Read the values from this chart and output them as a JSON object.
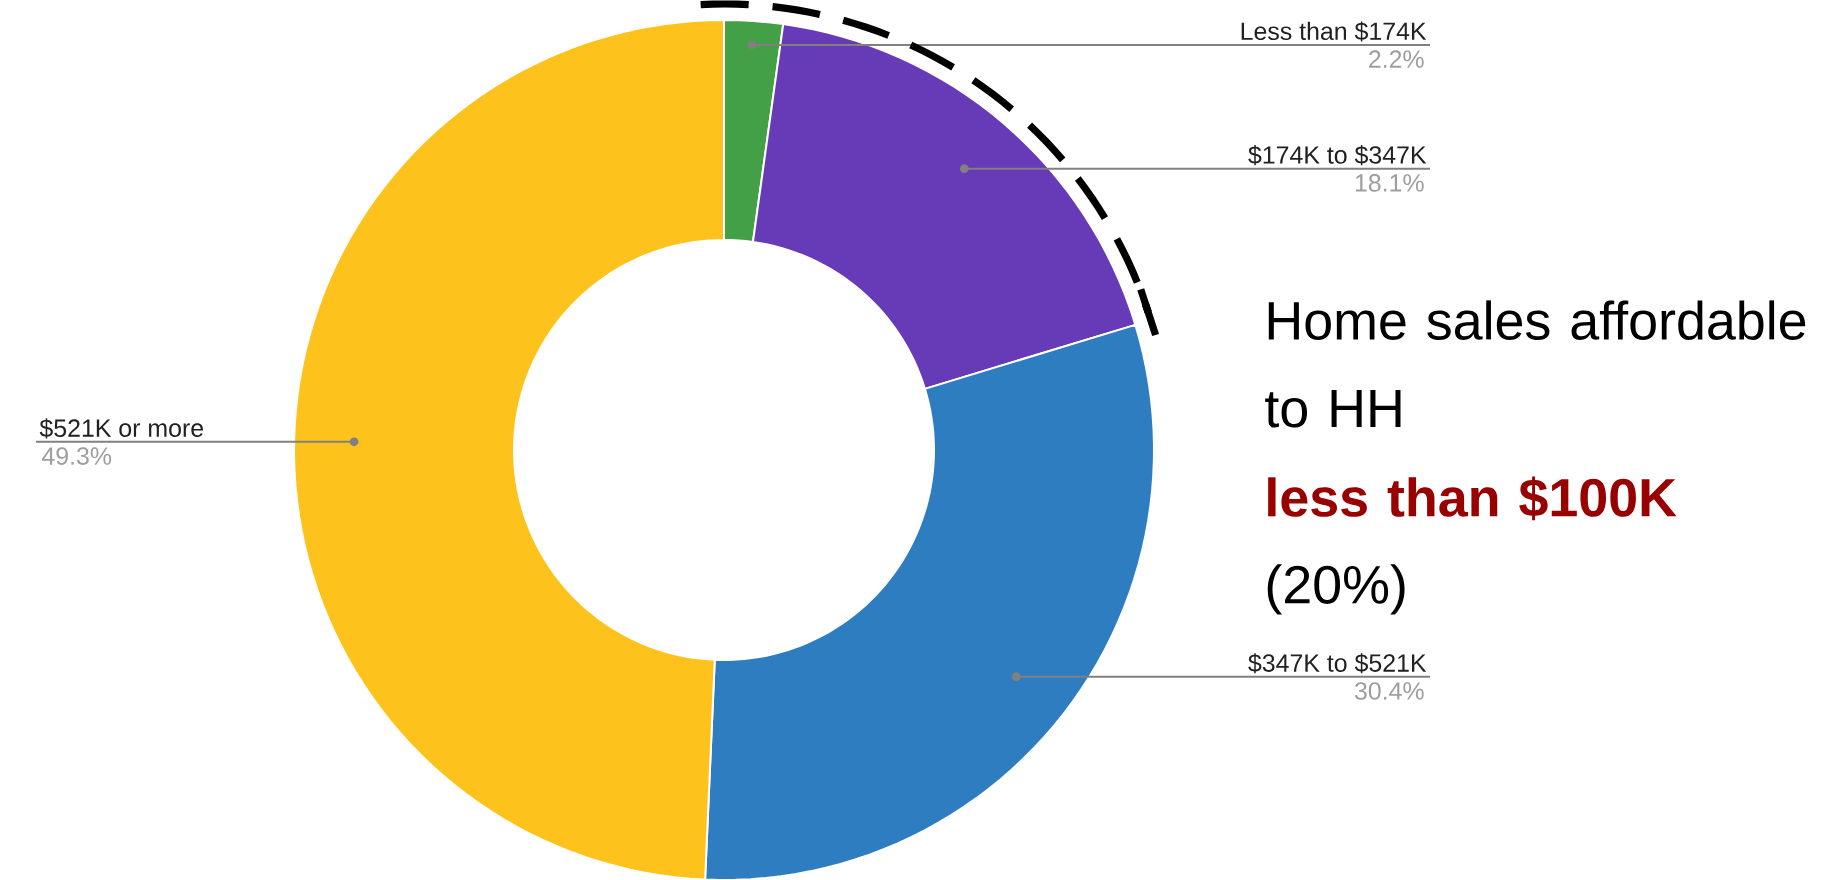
{
  "chart_data": {
    "type": "donut",
    "categories": [
      "Less than $174K",
      "$174K to $347K",
      "$347K to $521K",
      "$521K or more"
    ],
    "values": [
      2.2,
      18.1,
      30.4,
      49.3
    ],
    "value_labels": [
      "2.2%",
      "18.1%",
      "30.4%",
      "49.3%"
    ],
    "colors": [
      "#43a047",
      "#673ab7",
      "#2e7dc1",
      "#fdc21b"
    ],
    "annotations": [
      "Home sales affordable to HH",
      "less than $100K",
      "(20%)"
    ]
  }
}
